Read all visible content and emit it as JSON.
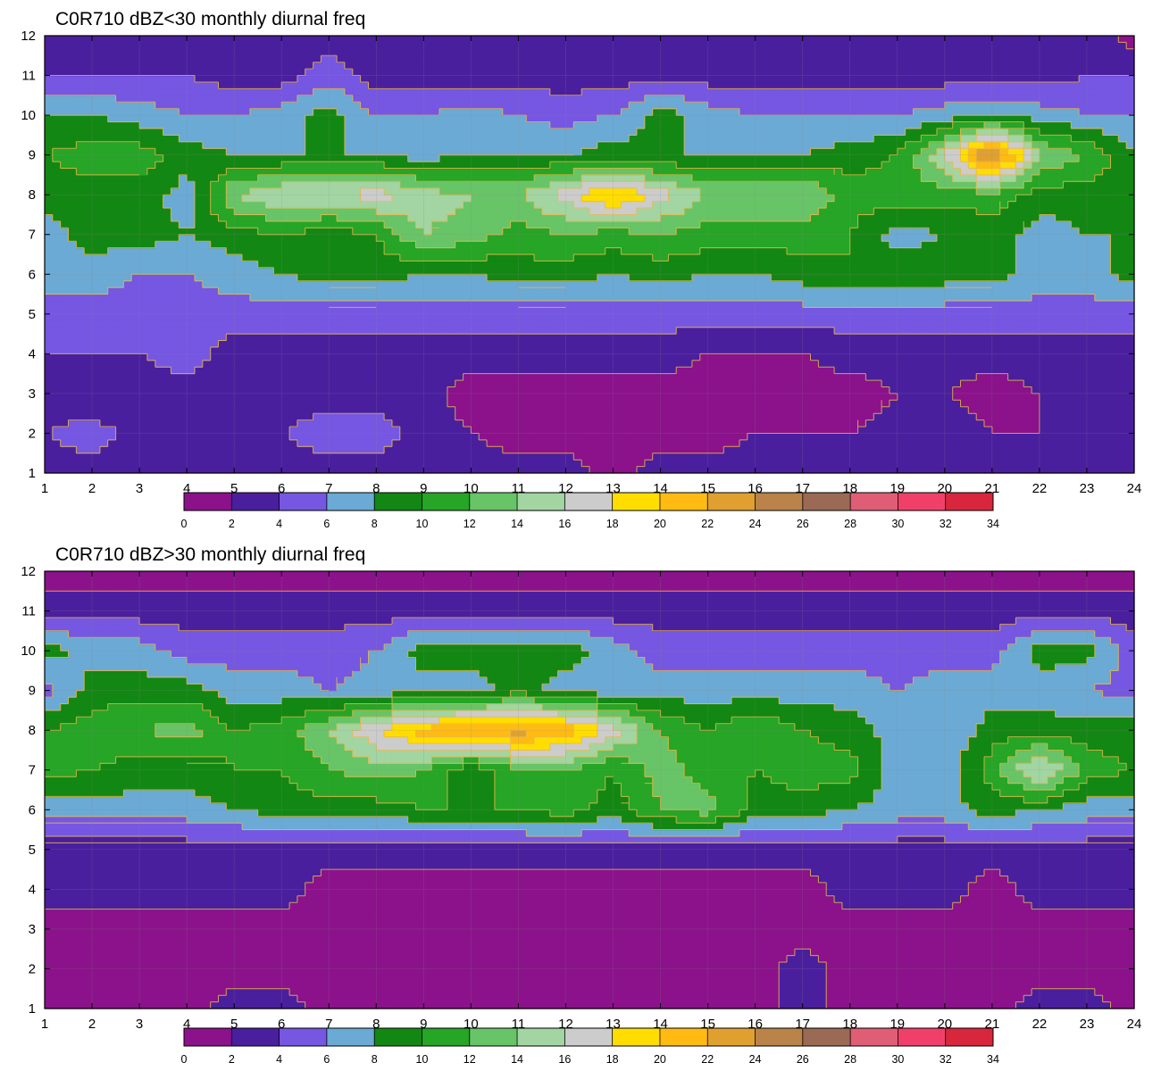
{
  "chart_data": [
    {
      "type": "heatmap",
      "title": "C0R710 dBZ<30 monthly diurnal freq",
      "x": [
        1,
        2,
        3,
        4,
        5,
        6,
        7,
        8,
        9,
        10,
        11,
        12,
        13,
        14,
        15,
        16,
        17,
        18,
        19,
        20,
        21,
        22,
        23,
        24
      ],
      "y": [
        1,
        2,
        3,
        4,
        5,
        6,
        7,
        8,
        9,
        10,
        11,
        12
      ],
      "xlim": [
        1,
        24
      ],
      "ylim": [
        1,
        12
      ],
      "x_ticks": [
        "1",
        "2",
        "3",
        "4",
        "5",
        "6",
        "7",
        "8",
        "9",
        "10",
        "11",
        "12",
        "13",
        "14",
        "15",
        "16",
        "17",
        "18",
        "19",
        "20",
        "21",
        "22",
        "23",
        "24"
      ],
      "y_ticks": [
        "1",
        "2",
        "3",
        "4",
        "5",
        "6",
        "7",
        "8",
        "9",
        "10",
        "11",
        "12"
      ],
      "grid": true,
      "values": [
        [
          3,
          3,
          3,
          2.8,
          3,
          3,
          3,
          3,
          3,
          3,
          3,
          3,
          1,
          3,
          3,
          3,
          3,
          3,
          3,
          3,
          3,
          3,
          3,
          3
        ],
        [
          4,
          5,
          3,
          3,
          3,
          4,
          5,
          5,
          3,
          2,
          1,
          1,
          1,
          1,
          1,
          2,
          2,
          2,
          3,
          3,
          2,
          2,
          3,
          3
        ],
        [
          3,
          2,
          3,
          3,
          3,
          3,
          3,
          3,
          3,
          1,
          1,
          1,
          1,
          1,
          1,
          1,
          1,
          1,
          2,
          2,
          1,
          2,
          3,
          3
        ],
        [
          4,
          4,
          4,
          5,
          3,
          3,
          3,
          3,
          3,
          3,
          3,
          3,
          3,
          3,
          2,
          2,
          2,
          3,
          3,
          3,
          3,
          3,
          3,
          3
        ],
        [
          5,
          5,
          5,
          5,
          5,
          5,
          5,
          5,
          5,
          5,
          5,
          5,
          5,
          5,
          5,
          5,
          5,
          5,
          5,
          5,
          5,
          5,
          5,
          5
        ],
        [
          7,
          7,
          6,
          6,
          7,
          8,
          9,
          9,
          8,
          8,
          9,
          9,
          8,
          9,
          8,
          8,
          9,
          10,
          10,
          9,
          9,
          7,
          7,
          9
        ],
        [
          7,
          9,
          9,
          8,
          9,
          10,
          9,
          10,
          14,
          13,
          11,
          12,
          11,
          12,
          11,
          11,
          11,
          10,
          7,
          8,
          9,
          7,
          8,
          8
        ],
        [
          9,
          9,
          9,
          7,
          14,
          16,
          16,
          17,
          15,
          14,
          14,
          17,
          21,
          17,
          14,
          14,
          14,
          11,
          11,
          11,
          11,
          9,
          9,
          9
        ],
        [
          10,
          11,
          11,
          9,
          8,
          8,
          8,
          8,
          7,
          8,
          8,
          8,
          9,
          8,
          8,
          8,
          8,
          9,
          10,
          16,
          26,
          14,
          12,
          8
        ],
        [
          8,
          8,
          7,
          6,
          6,
          7,
          9,
          6,
          6,
          7,
          6,
          5,
          6,
          9,
          7,
          6,
          6,
          6,
          6,
          7,
          8,
          7,
          6,
          6
        ],
        [
          4,
          4,
          4,
          4,
          3,
          3,
          5,
          3,
          3,
          3,
          3,
          3,
          3,
          3,
          3,
          3,
          3,
          3,
          3,
          3,
          3,
          3,
          4,
          4
        ],
        [
          3,
          3,
          3,
          3,
          3,
          3,
          3,
          3,
          3,
          3,
          3,
          3,
          3,
          3,
          3,
          3,
          3,
          3,
          3,
          3,
          3,
          3,
          3,
          1
        ]
      ]
    },
    {
      "type": "heatmap",
      "title": "C0R710 dBZ>30 monthly diurnal freq",
      "x": [
        1,
        2,
        3,
        4,
        5,
        6,
        7,
        8,
        9,
        10,
        11,
        12,
        13,
        14,
        15,
        16,
        17,
        18,
        19,
        20,
        21,
        22,
        23,
        24
      ],
      "y": [
        1,
        2,
        3,
        4,
        5,
        6,
        7,
        8,
        9,
        10,
        11,
        12
      ],
      "xlim": [
        1,
        24
      ],
      "ylim": [
        1,
        12
      ],
      "x_ticks": [
        "1",
        "2",
        "3",
        "4",
        "5",
        "6",
        "7",
        "8",
        "9",
        "10",
        "11",
        "12",
        "13",
        "14",
        "15",
        "16",
        "17",
        "18",
        "19",
        "20",
        "21",
        "22",
        "23",
        "24"
      ],
      "y_ticks": [
        "1",
        "2",
        "3",
        "4",
        "5",
        "6",
        "7",
        "8",
        "9",
        "10",
        "11",
        "12"
      ],
      "grid": true,
      "values": [
        [
          1,
          1,
          1,
          1,
          3,
          3,
          1,
          1,
          1,
          1,
          1,
          1,
          1,
          1,
          1,
          1,
          3,
          1,
          1,
          1,
          1,
          3,
          3,
          1
        ],
        [
          1,
          1,
          1,
          1,
          1,
          1,
          1,
          1,
          1,
          1,
          1,
          1,
          1,
          1,
          1,
          1,
          3,
          1,
          1,
          1,
          1,
          1,
          1,
          1
        ],
        [
          1,
          1,
          1,
          1,
          1,
          1,
          1,
          1,
          1,
          1,
          1,
          1,
          1,
          1,
          1,
          1,
          1,
          1,
          1,
          1,
          1,
          1,
          1,
          1
        ],
        [
          3,
          3,
          3,
          3,
          3,
          3,
          1,
          1,
          1,
          1,
          1,
          1,
          1,
          1,
          1,
          1,
          1,
          3,
          3,
          3,
          1,
          3,
          3,
          3
        ],
        [
          3,
          3,
          3,
          3,
          3,
          3,
          3,
          3,
          3,
          3,
          3,
          3,
          3,
          3,
          3,
          3,
          3,
          3,
          3,
          3,
          3,
          3,
          3,
          3
        ],
        [
          7,
          7,
          7,
          7,
          8,
          9,
          9,
          9,
          10,
          10,
          10,
          11,
          9,
          12,
          13,
          9,
          9,
          8,
          7,
          7,
          9,
          8,
          7,
          7
        ],
        [
          11,
          10,
          9,
          9,
          10,
          10,
          12,
          13,
          12,
          8,
          12,
          12,
          10,
          13,
          11,
          10,
          11,
          11,
          7,
          7,
          11,
          17,
          11,
          10
        ],
        [
          10,
          11,
          12,
          13,
          10,
          11,
          14,
          18,
          21,
          23,
          23,
          22,
          17,
          12,
          10,
          12,
          10,
          9,
          7,
          6,
          9,
          9,
          9,
          9
        ],
        [
          5,
          9,
          9,
          9,
          7,
          7,
          6,
          7,
          7,
          7,
          9,
          7,
          7,
          7,
          7,
          7,
          7,
          7,
          6,
          7,
          7,
          7,
          6,
          5
        ],
        [
          9,
          7,
          7,
          5,
          5,
          5,
          5,
          6,
          9,
          9,
          9,
          9,
          7,
          5,
          5,
          5,
          5,
          5,
          5,
          5,
          5,
          9,
          9,
          5
        ],
        [
          3,
          3,
          3,
          3,
          3,
          3,
          3,
          3,
          3,
          3,
          3,
          3,
          3,
          3,
          3,
          3,
          3,
          3,
          3,
          3,
          3,
          3,
          3,
          3
        ],
        [
          1,
          1,
          1,
          1,
          1,
          1,
          1,
          1,
          1,
          1,
          1,
          1,
          1,
          1,
          1,
          1,
          1,
          1,
          1,
          1,
          1,
          1,
          1,
          1
        ]
      ]
    }
  ],
  "colorbar": {
    "levels": [
      0,
      2,
      4,
      6,
      8,
      10,
      12,
      14,
      16,
      18,
      20,
      22,
      24,
      26,
      28,
      30,
      32,
      34
    ],
    "labels": [
      "0",
      "2",
      "4",
      "6",
      "8",
      "10",
      "12",
      "14",
      "16",
      "18",
      "20",
      "22",
      "24",
      "26",
      "28",
      "30",
      "32",
      "34"
    ],
    "colors": [
      "#8b128b",
      "#4a1f9e",
      "#7557e2",
      "#6aaad4",
      "#138713",
      "#26a526",
      "#67c467",
      "#a2d5a2",
      "#cccccc",
      "#ffdd00",
      "#ffbb11",
      "#e0a030",
      "#b98349",
      "#9b6a54",
      "#df5e76",
      "#f0406a",
      "#d8263c"
    ]
  },
  "line_color": "#e8b84a"
}
